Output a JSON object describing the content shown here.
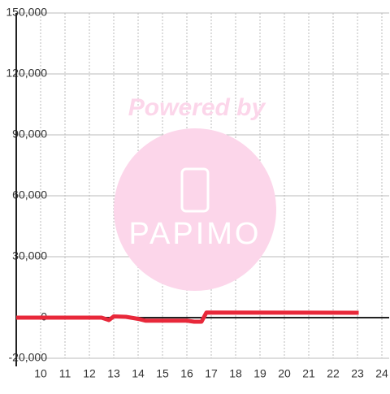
{
  "chart_data": {
    "type": "line",
    "watermark": {
      "line1": "Powered by",
      "line2": "PAPIMO"
    },
    "x": [
      9,
      12.5,
      12.8,
      13.0,
      13.5,
      14.0,
      14.3,
      16.0,
      16.3,
      16.6,
      16.8,
      23.05
    ],
    "series": [
      {
        "color": "#e8283a",
        "values": [
          0,
          0,
          -1200,
          600,
          400,
          -600,
          -1500,
          -1500,
          -2000,
          -2000,
          2500,
          2400
        ]
      }
    ],
    "xlim": [
      9,
      24.3
    ],
    "xticks": [
      10,
      11,
      12,
      13,
      14,
      15,
      16,
      17,
      18,
      19,
      20,
      21,
      22,
      23,
      24
    ],
    "ylim": [
      -20000,
      150000
    ],
    "yticks": [
      {
        "value": -20000,
        "label": "-20,000"
      },
      0,
      {
        "value": 30000,
        "label": "30,000"
      },
      {
        "value": 60000,
        "label": "60,000"
      },
      {
        "value": 90000,
        "label": "90,000"
      },
      {
        "value": 120000,
        "label": "120,000"
      },
      {
        "value": 150000,
        "label": "150,000"
      }
    ],
    "grid": true
  }
}
